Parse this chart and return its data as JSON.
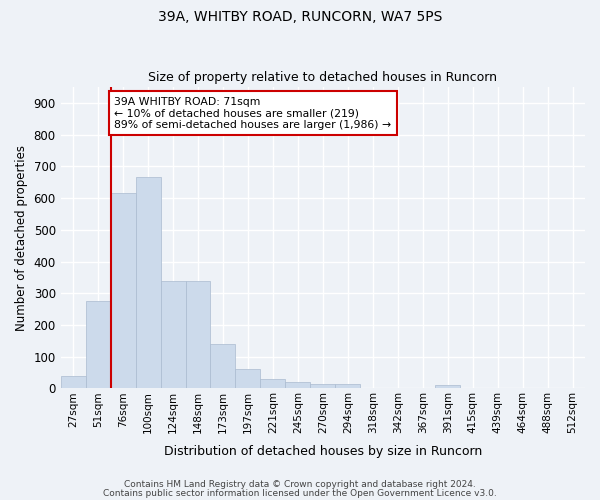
{
  "title1": "39A, WHITBY ROAD, RUNCORN, WA7 5PS",
  "title2": "Size of property relative to detached houses in Runcorn",
  "xlabel": "Distribution of detached houses by size in Runcorn",
  "ylabel": "Number of detached properties",
  "bins": [
    "27sqm",
    "51sqm",
    "76sqm",
    "100sqm",
    "124sqm",
    "148sqm",
    "173sqm",
    "197sqm",
    "221sqm",
    "245sqm",
    "270sqm",
    "294sqm",
    "318sqm",
    "342sqm",
    "367sqm",
    "391sqm",
    "415sqm",
    "439sqm",
    "464sqm",
    "488sqm",
    "512sqm"
  ],
  "values": [
    40,
    275,
    615,
    665,
    340,
    340,
    140,
    60,
    30,
    20,
    15,
    15,
    0,
    0,
    0,
    10,
    0,
    0,
    0,
    0,
    0
  ],
  "bar_color": "#ccdaeb",
  "bar_edge_color": "#aabbd0",
  "bar_width": 1.0,
  "property_line_x": 1.5,
  "annotation_text": "39A WHITBY ROAD: 71sqm\n← 10% of detached houses are smaller (219)\n89% of semi-detached houses are larger (1,986) →",
  "annotation_box_color": "#ffffff",
  "annotation_box_edge": "#cc0000",
  "property_line_color": "#cc0000",
  "background_color": "#eef2f7",
  "plot_bg_color": "#eef2f7",
  "grid_color": "#ffffff",
  "ylim": [
    0,
    950
  ],
  "yticks": [
    0,
    100,
    200,
    300,
    400,
    500,
    600,
    700,
    800,
    900
  ],
  "footnote1": "Contains HM Land Registry data © Crown copyright and database right 2024.",
  "footnote2": "Contains public sector information licensed under the Open Government Licence v3.0."
}
